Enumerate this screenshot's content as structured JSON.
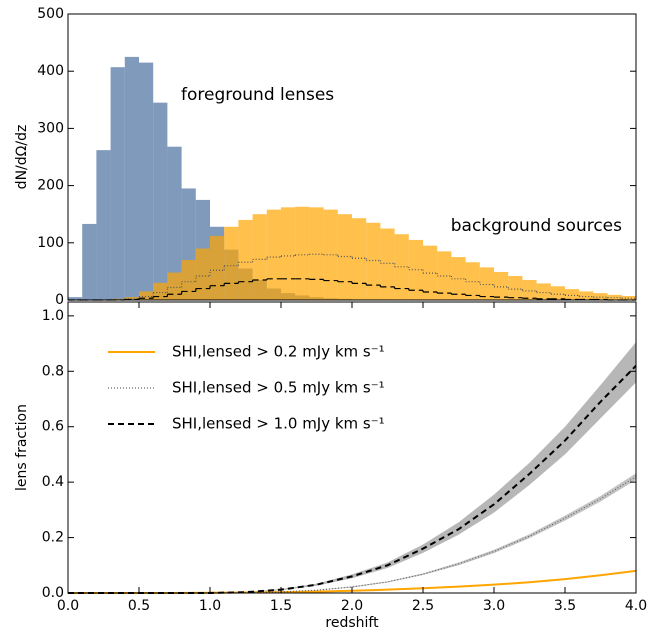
{
  "chart_data": [
    {
      "type": "histogram",
      "ylabel": "dN/dΩ/dz",
      "bins": [
        0,
        0.1,
        0.2,
        0.3,
        0.4,
        0.5,
        0.6,
        0.7,
        0.8,
        0.9,
        1.0,
        1.1,
        1.2,
        1.3,
        1.4,
        1.5,
        1.6,
        1.7,
        1.8,
        1.9,
        2.0,
        2.1,
        2.2,
        2.3,
        2.4,
        2.5,
        2.6,
        2.7,
        2.8,
        2.9,
        3.0,
        3.1,
        3.2,
        3.3,
        3.4,
        3.5,
        3.6,
        3.7,
        3.8,
        3.9,
        4.0
      ],
      "series": [
        {
          "style": "bar",
          "color": "#4a6f9e",
          "values": [
            5,
            133,
            262,
            407,
            425,
            415,
            345,
            268,
            195,
            175,
            128,
            88,
            55,
            35,
            20,
            12,
            8,
            5,
            3,
            2,
            1,
            1,
            1,
            0,
            0,
            0,
            0,
            0,
            0,
            0,
            0,
            0,
            0,
            0,
            0,
            0,
            0,
            0,
            0,
            0
          ]
        },
        {
          "style": "bar",
          "color": "#ffa500",
          "values": [
            0,
            0,
            0,
            2,
            5,
            15,
            30,
            48,
            70,
            90,
            112,
            128,
            140,
            150,
            158,
            162,
            163,
            162,
            158,
            150,
            143,
            135,
            125,
            115,
            105,
            95,
            85,
            75,
            66,
            57,
            49,
            42,
            35,
            29,
            24,
            19,
            15,
            12,
            9,
            7
          ]
        },
        {
          "style": "dotted",
          "color": "#555555",
          "values": [
            0,
            0,
            0,
            1,
            2,
            6,
            13,
            22,
            32,
            42,
            52,
            60,
            66,
            71,
            75,
            77,
            79,
            80,
            79,
            76,
            73,
            69,
            64,
            58,
            53,
            47,
            42,
            37,
            32,
            27,
            23,
            19,
            16,
            13,
            10,
            8,
            6,
            5,
            4,
            3
          ]
        },
        {
          "style": "dashed",
          "color": "#000000",
          "values": [
            0,
            0,
            0,
            0,
            1,
            3,
            6,
            10,
            15,
            20,
            25,
            29,
            32,
            35,
            37,
            37,
            37,
            36,
            34,
            32,
            29,
            26,
            23,
            20,
            17,
            14,
            12,
            10,
            8,
            6,
            5,
            4,
            3,
            2,
            2,
            1,
            1,
            1,
            0,
            0
          ]
        }
      ],
      "annotations": [
        {
          "text": "foreground lenses",
          "color": "#5b7fa8"
        },
        {
          "text": "background sources",
          "color": "#ffa500"
        }
      ],
      "xlim": [
        0,
        4
      ],
      "ylim": [
        0,
        500
      ],
      "yticks": [
        0,
        100,
        200,
        300,
        400,
        500
      ]
    },
    {
      "type": "line",
      "xlabel": "redshift",
      "ylabel": "lens fraction",
      "legend": "upper left",
      "x": [
        0,
        0.25,
        0.5,
        0.75,
        1.0,
        1.25,
        1.5,
        1.75,
        2.0,
        2.25,
        2.5,
        2.75,
        3.0,
        3.25,
        3.5,
        3.75,
        4.0
      ],
      "series": [
        {
          "name": "SHI,lensed > 0.2 mJy km s⁻¹",
          "color": "#ffa500",
          "style": "solid",
          "values": [
            0,
            0,
            0,
            0,
            0.001,
            0.002,
            0.003,
            0.005,
            0.008,
            0.012,
            0.017,
            0.023,
            0.03,
            0.039,
            0.05,
            0.064,
            0.08
          ]
        },
        {
          "name": "SHI,lensed > 0.5 mJy km s⁻¹",
          "color": "#666666",
          "style": "dotted",
          "band_color": "#aaaaaa",
          "values": [
            0,
            0,
            0,
            0,
            0,
            0.001,
            0.004,
            0.01,
            0.022,
            0.04,
            0.068,
            0.105,
            0.15,
            0.205,
            0.27,
            0.34,
            0.42
          ],
          "lower": [
            0,
            0,
            0,
            0,
            0,
            0.001,
            0.004,
            0.009,
            0.02,
            0.038,
            0.065,
            0.1,
            0.144,
            0.198,
            0.261,
            0.33,
            0.408
          ],
          "upper": [
            0,
            0,
            0,
            0,
            0,
            0.001,
            0.005,
            0.011,
            0.024,
            0.042,
            0.071,
            0.11,
            0.156,
            0.212,
            0.279,
            0.35,
            0.432
          ]
        },
        {
          "name": "SHI,lensed > 1.0 mJy km s⁻¹",
          "color": "#000000",
          "style": "dashed",
          "band_color": "#999999",
          "values": [
            0,
            0,
            0,
            0,
            0,
            0.003,
            0.012,
            0.03,
            0.06,
            0.1,
            0.16,
            0.23,
            0.32,
            0.43,
            0.55,
            0.69,
            0.82
          ],
          "lower": [
            0,
            0,
            0,
            0,
            0,
            0.002,
            0.01,
            0.026,
            0.053,
            0.09,
            0.145,
            0.21,
            0.29,
            0.39,
            0.5,
            0.63,
            0.76
          ],
          "upper": [
            0,
            0,
            0,
            0,
            0.001,
            0.004,
            0.014,
            0.034,
            0.067,
            0.11,
            0.175,
            0.255,
            0.355,
            0.47,
            0.6,
            0.75,
            0.905
          ]
        }
      ],
      "xlim": [
        0,
        4
      ],
      "ylim": [
        0,
        1.05
      ],
      "xticks": [
        {
          "value": 0,
          "label": "0.0"
        },
        0.5,
        {
          "value": 1,
          "label": "1.0"
        },
        1.5,
        {
          "value": 2,
          "label": "2.0"
        },
        2.5,
        {
          "value": 3,
          "label": "3.0"
        },
        3.5,
        {
          "value": 4,
          "label": "4.0"
        }
      ],
      "yticks": [
        {
          "value": 0,
          "label": "0.0"
        },
        0.2,
        0.4,
        0.6,
        0.8,
        {
          "value": 1,
          "label": "1.0"
        }
      ]
    }
  ]
}
